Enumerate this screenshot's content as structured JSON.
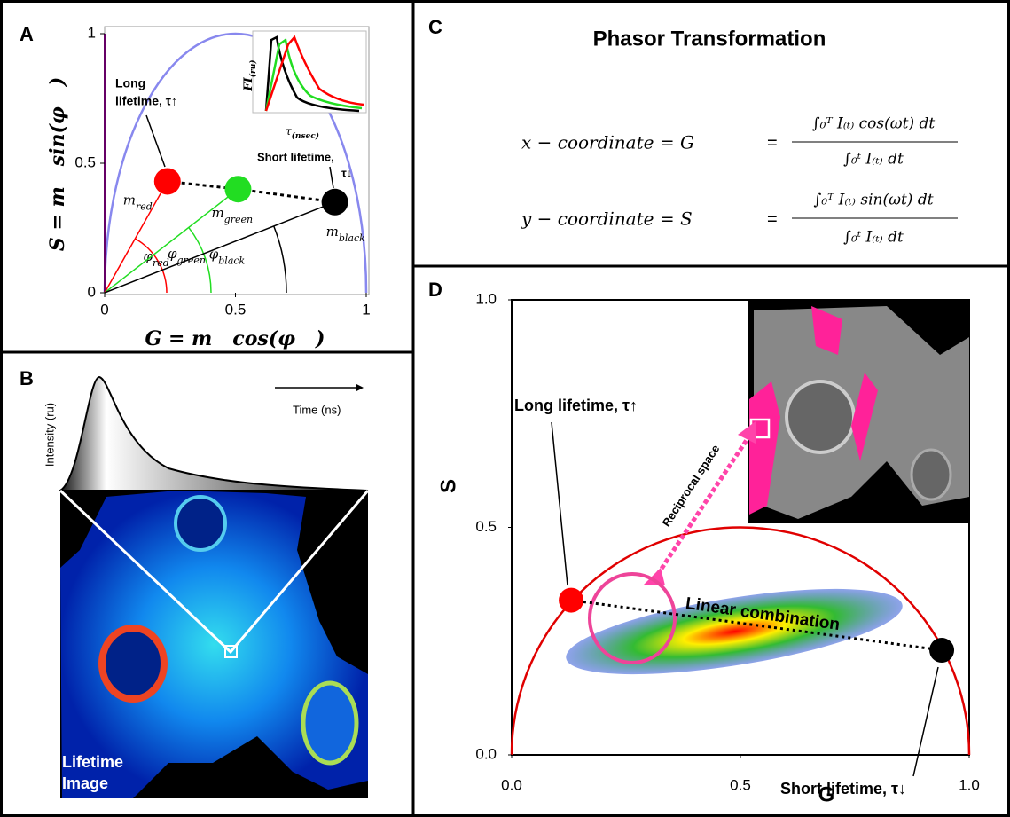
{
  "panels": {
    "a": {
      "label": "A",
      "x_axis_label": "G = m   cos(φ   )",
      "y_axis_label": "S = m   sin(φ   )",
      "xlim": [
        0,
        1
      ],
      "ylim": [
        0,
        1
      ],
      "xticks": [
        0,
        0.5,
        1
      ],
      "yticks": [
        0,
        0.5,
        1
      ],
      "points": [
        {
          "label": {
            "base": "m",
            "sub": "red"
          },
          "angle_label": {
            "base": "φ",
            "sub": "red"
          },
          "color": "#ff0000",
          "g": 0.24,
          "s": 0.43
        },
        {
          "label": {
            "base": "m",
            "sub": "green"
          },
          "angle_label": {
            "base": "φ",
            "sub": "green"
          },
          "color": "#22dd22",
          "g": 0.51,
          "s": 0.4
        },
        {
          "label": {
            "base": "m",
            "sub": "black"
          },
          "angle_label": {
            "base": "φ",
            "sub": "black"
          },
          "color": "#000000",
          "g": 0.88,
          "s": 0.35
        }
      ],
      "long_lifetime": [
        "Long",
        "lifetime, τ↑"
      ],
      "short_lifetime": [
        "Short lifetime,",
        "τ↓"
      ],
      "inset": {
        "y_label": {
          "base": "FI",
          "sub": "(ru)"
        },
        "x_label": {
          "base": "τ",
          "sub": "(nsec)"
        }
      }
    },
    "b": {
      "label": "B",
      "y_axis_label": "Intensity (ru)",
      "x_axis_label": "Time (ns)",
      "image_label": [
        "Lifetime",
        "Image"
      ]
    },
    "c": {
      "label": "C",
      "title": "Phasor Transformation",
      "equations": [
        {
          "lhs": "x − coordinate = G",
          "eq": "=",
          "numerator": "∫₀ᵀ I₍ₜ₎ cos(ωt) dt",
          "denominator": "∫₀ᵗ I₍ₜ₎ dt"
        },
        {
          "lhs": "y − coordinate = S",
          "eq": "=",
          "numerator": "∫₀ᵀ I₍ₜ₎ sin(ωt) dt",
          "denominator": "∫₀ᵗ I₍ₜ₎ dt"
        }
      ]
    },
    "d": {
      "label": "D",
      "x_axis_label": "G",
      "y_axis_label": "S",
      "xlim": [
        0,
        1
      ],
      "ylim": [
        0,
        1
      ],
      "xticks": [
        {
          "value": 0,
          "label": "0.0"
        },
        {
          "value": 0.5,
          "label": "0.5"
        },
        {
          "value": 1,
          "label": "1.0"
        }
      ],
      "yticks": [
        {
          "value": 0,
          "label": "0.0"
        },
        {
          "value": 0.5,
          "label": "0.5"
        },
        {
          "value": 1,
          "label": "1.0"
        }
      ],
      "points": [
        {
          "color": "#ff0000",
          "g": 0.13,
          "s": 0.34
        },
        {
          "color": "#000000",
          "g": 0.94,
          "s": 0.23
        }
      ],
      "long_lifetime": "Long lifetime, τ↑",
      "short_lifetime": "Short lifetime, τ↓",
      "combination_label": "Linear combination",
      "reciprocal_label": "Reciprocal space"
    }
  }
}
